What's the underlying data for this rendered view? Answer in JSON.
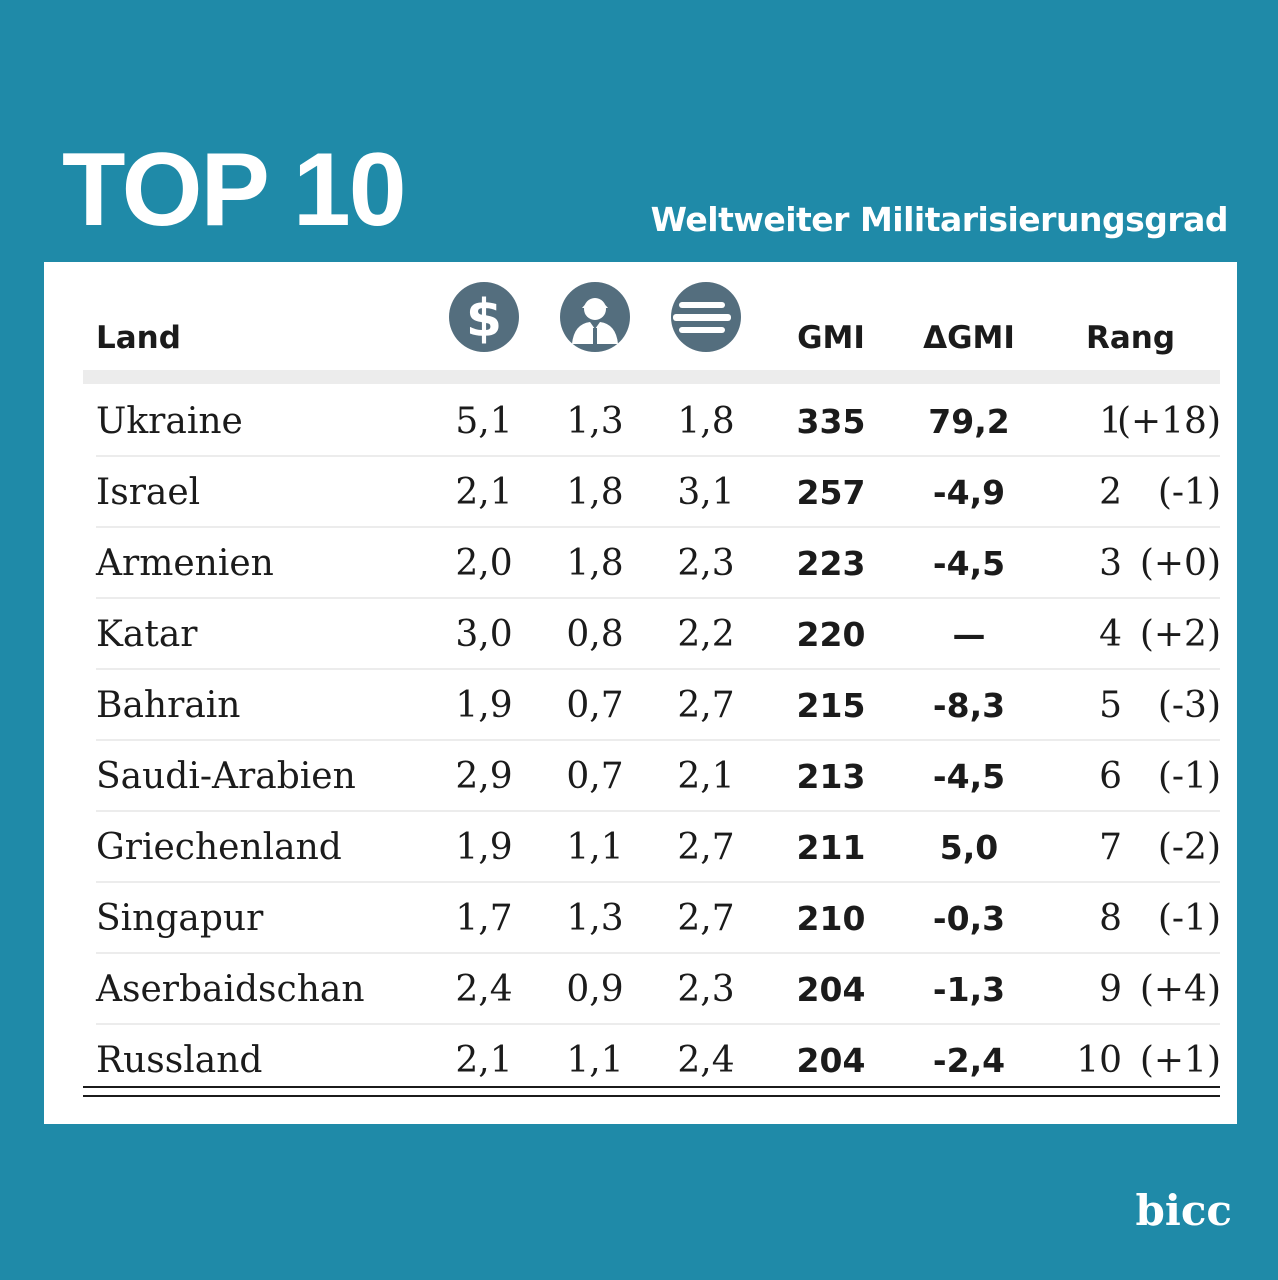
{
  "title": "TOP 10",
  "subtitle": "Weltweiter Militarisierungsgrad",
  "logo": "bicc",
  "icon_color": "#546e7e",
  "accent": "#1f8aa8",
  "headers": {
    "land": "Land",
    "icons": [
      "dollar-icon",
      "soldier-icon",
      "weapons-icon"
    ],
    "gmi": "GMI",
    "dgmi": "ΔGMI",
    "rang": "Rang"
  },
  "chart_data": {
    "type": "table",
    "columns": [
      "Land",
      "dollar-icon",
      "soldier-icon",
      "weapons-icon",
      "GMI",
      "ΔGMI",
      "Rang"
    ],
    "rows": [
      {
        "land": "Ukraine",
        "v1": "5,1",
        "v2": "1,3",
        "v3": "1,8",
        "gmi": "335",
        "dgmi": "79,2",
        "rang": "1",
        "change": "(+18)"
      },
      {
        "land": "Israel",
        "v1": "2,1",
        "v2": "1,8",
        "v3": "3,1",
        "gmi": "257",
        "dgmi": "-4,9",
        "rang": "2",
        "change": "(-1)"
      },
      {
        "land": "Armenien",
        "v1": "2,0",
        "v2": "1,8",
        "v3": "2,3",
        "gmi": "223",
        "dgmi": "-4,5",
        "rang": "3",
        "change": "(+0)"
      },
      {
        "land": "Katar",
        "v1": "3,0",
        "v2": "0,8",
        "v3": "2,2",
        "gmi": "220",
        "dgmi": "—",
        "rang": "4",
        "change": "(+2)"
      },
      {
        "land": "Bahrain",
        "v1": "1,9",
        "v2": "0,7",
        "v3": "2,7",
        "gmi": "215",
        "dgmi": "-8,3",
        "rang": "5",
        "change": "(-3)"
      },
      {
        "land": "Saudi-Arabien",
        "v1": "2,9",
        "v2": "0,7",
        "v3": "2,1",
        "gmi": "213",
        "dgmi": "-4,5",
        "rang": "6",
        "change": "(-1)"
      },
      {
        "land": "Griechenland",
        "v1": "1,9",
        "v2": "1,1",
        "v3": "2,7",
        "gmi": "211",
        "dgmi": "5,0",
        "rang": "7",
        "change": "(-2)"
      },
      {
        "land": "Singapur",
        "v1": "1,7",
        "v2": "1,3",
        "v3": "2,7",
        "gmi": "210",
        "dgmi": "-0,3",
        "rang": "8",
        "change": "(-1)"
      },
      {
        "land": "Aserbaidschan",
        "v1": "2,4",
        "v2": "0,9",
        "v3": "2,3",
        "gmi": "204",
        "dgmi": "-1,3",
        "rang": "9",
        "change": "(+4)"
      },
      {
        "land": "Russland",
        "v1": "2,1",
        "v2": "1,1",
        "v3": "2,4",
        "gmi": "204",
        "dgmi": "-2,4",
        "rang": "10",
        "change": "(+1)"
      }
    ]
  }
}
